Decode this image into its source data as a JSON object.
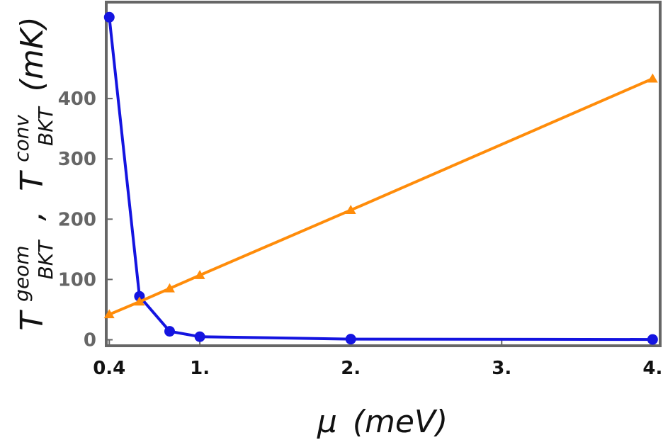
{
  "chart_data": {
    "type": "line",
    "xlabel_symbol": "μ",
    "xlabel_unit": "(meV)",
    "ylabel_parts": {
      "t1": "T",
      "t1_sup": "geom",
      "t1_sub": "BKT",
      "sep": ",",
      "t2": "T",
      "t2_sup": "conv",
      "t2_sub": "BKT",
      "unit": "(mK)"
    },
    "xlim": [
      0.38,
      4.05
    ],
    "ylim": [
      -10,
      560
    ],
    "x_ticks": [
      {
        "value": 0.4,
        "label": "0.4"
      },
      {
        "value": 1.0,
        "label": "1."
      },
      {
        "value": 2.0,
        "label": "2."
      },
      {
        "value": 3.0,
        "label": "3."
      },
      {
        "value": 4.0,
        "label": "4."
      }
    ],
    "y_ticks": [
      {
        "value": 0,
        "label": "0"
      },
      {
        "value": 100,
        "label": "100"
      },
      {
        "value": 200,
        "label": "200"
      },
      {
        "value": 300,
        "label": "300"
      },
      {
        "value": 400,
        "label": "400"
      }
    ],
    "series": [
      {
        "marker": "circle",
        "color": "#1414e0",
        "points": [
          {
            "x": 0.4,
            "y": 535
          },
          {
            "x": 0.6,
            "y": 72
          },
          {
            "x": 0.8,
            "y": 14
          },
          {
            "x": 1.0,
            "y": 5
          },
          {
            "x": 2.0,
            "y": 1
          },
          {
            "x": 4.0,
            "y": 0.5
          }
        ]
      },
      {
        "marker": "triangle",
        "color": "#ff8c0a",
        "points": [
          {
            "x": 0.4,
            "y": 42
          },
          {
            "x": 0.6,
            "y": 63
          },
          {
            "x": 0.8,
            "y": 85
          },
          {
            "x": 1.0,
            "y": 107
          },
          {
            "x": 2.0,
            "y": 215
          },
          {
            "x": 4.0,
            "y": 433
          }
        ]
      }
    ],
    "frame_color": "#666666",
    "grid": false
  }
}
